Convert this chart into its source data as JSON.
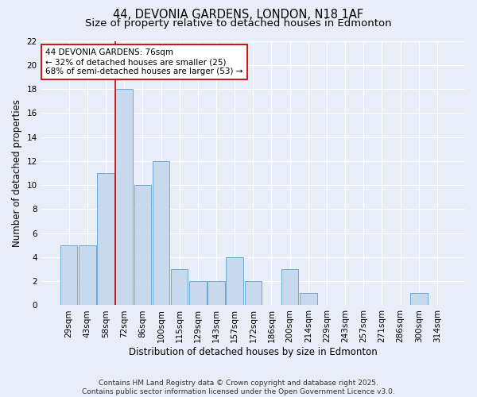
{
  "title_line1": "44, DEVONIA GARDENS, LONDON, N18 1AF",
  "title_line2": "Size of property relative to detached houses in Edmonton",
  "xlabel": "Distribution of detached houses by size in Edmonton",
  "ylabel": "Number of detached properties",
  "bar_labels": [
    "29sqm",
    "43sqm",
    "58sqm",
    "72sqm",
    "86sqm",
    "100sqm",
    "115sqm",
    "129sqm",
    "143sqm",
    "157sqm",
    "172sqm",
    "186sqm",
    "200sqm",
    "214sqm",
    "229sqm",
    "243sqm",
    "257sqm",
    "271sqm",
    "286sqm",
    "300sqm",
    "314sqm"
  ],
  "bar_values": [
    5,
    5,
    11,
    18,
    10,
    12,
    3,
    2,
    2,
    4,
    2,
    0,
    3,
    1,
    0,
    0,
    0,
    0,
    0,
    1,
    0
  ],
  "bar_color": "#c8d9ee",
  "bar_edge_color": "#6aaad4",
  "bar_edge_width": 0.7,
  "red_line_index": 3,
  "red_line_color": "#cc0000",
  "ylim": [
    0,
    22
  ],
  "yticks": [
    0,
    2,
    4,
    6,
    8,
    10,
    12,
    14,
    16,
    18,
    20,
    22
  ],
  "annotation_text": "44 DEVONIA GARDENS: 76sqm\n← 32% of detached houses are smaller (25)\n68% of semi-detached houses are larger (53) →",
  "annotation_box_color": "#ffffff",
  "annotation_box_edge": "#cc0000",
  "background_color": "#e8eef8",
  "grid_color": "#ffffff",
  "footer_text": "Contains HM Land Registry data © Crown copyright and database right 2025.\nContains public sector information licensed under the Open Government Licence v3.0.",
  "title_fontsize": 10.5,
  "subtitle_fontsize": 9.5,
  "axis_label_fontsize": 8.5,
  "tick_fontsize": 7.5,
  "annotation_fontsize": 7.5,
  "footer_fontsize": 6.5
}
